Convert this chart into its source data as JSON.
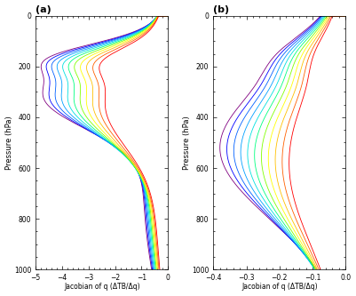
{
  "title_a": "(a)",
  "title_b": "(b)",
  "xlabel": "Jacobian of q (ΔTB/Δq)",
  "ylabel": "Pressure (hPa)",
  "xlim_a": [
    -5.0,
    0.0
  ],
  "xlim_b": [
    -0.4,
    0.0
  ],
  "xticks_a": [
    -5,
    -4,
    -3,
    -2,
    -1,
    0
  ],
  "xticks_b": [
    -0.4,
    -0.3,
    -0.2,
    -0.1,
    0.0
  ],
  "ylim": [
    1000,
    0
  ],
  "yticks": [
    0,
    200,
    400,
    600,
    800,
    1000
  ],
  "n_curves": 11,
  "colors": [
    "#800080",
    "#0000ff",
    "#0060ff",
    "#00a0ff",
    "#00e0e0",
    "#00ff80",
    "#80ff00",
    "#ffff00",
    "#ffc000",
    "#ff6000",
    "#ff0000"
  ],
  "background_color": "#ffffff",
  "figsize": [
    4.01,
    3.33
  ],
  "dpi": 100
}
